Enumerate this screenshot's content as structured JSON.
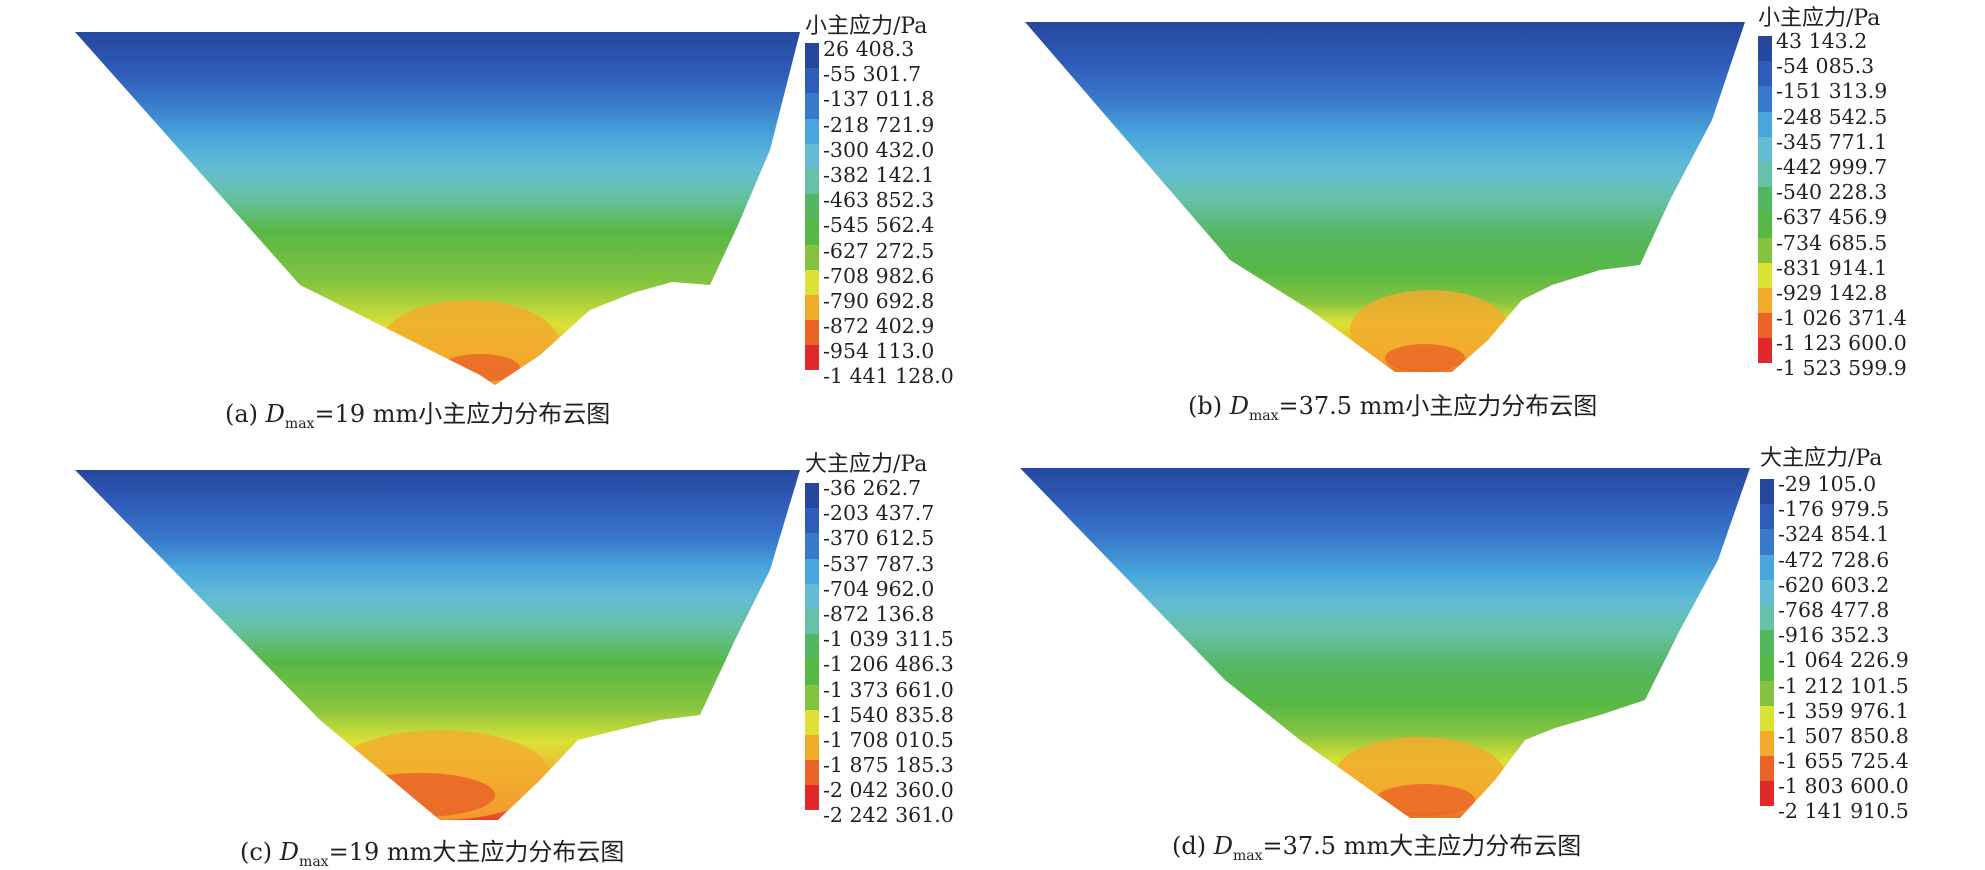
{
  "palette": [
    "#25479c",
    "#2f5cb8",
    "#3979cb",
    "#49a6dc",
    "#63bcd4",
    "#66c1a6",
    "#55b660",
    "#57b845",
    "#83c340",
    "#dbe135",
    "#f2ac2d",
    "#ea6428",
    "#e0292a",
    "#a82a2c"
  ],
  "panels": [
    {
      "legend_title": "小主应力/Pa",
      "legend_values": [
        "26 408.3",
        "-55 301.7",
        "-137 011.8",
        "-218 721.9",
        "-300 432.0",
        "-382 142.1",
        "-463 852.3",
        "-545 562.4",
        "-627 272.5",
        "-708 982.6",
        "-790 692.8",
        "-872 402.9",
        "-954 113.0",
        "-1 441 128.0"
      ],
      "caption": {
        "label": "(a) ",
        "var": "D",
        "sub": "max",
        "rest": "=19 mm小主应力分布云图"
      }
    },
    {
      "legend_title": "小主应力/Pa",
      "legend_values": [
        "43 143.2",
        "-54 085.3",
        "-151 313.9",
        "-248 542.5",
        "-345 771.1",
        "-442 999.7",
        "-540 228.3",
        "-637 456.9",
        "-734 685.5",
        "-831 914.1",
        "-929 142.8",
        "-1 026 371.4",
        "-1 123 600.0",
        "-1 523 599.9"
      ],
      "caption": {
        "label": "(b) ",
        "var": "D",
        "sub": "max",
        "rest": "=37.5 mm小主应力分布云图"
      }
    },
    {
      "legend_title": "大主应力/Pa",
      "legend_values": [
        "-36 262.7",
        "-203 437.7",
        "-370 612.5",
        "-537 787.3",
        "-704 962.0",
        "-872 136.8",
        "-1 039 311.5",
        "-1 206 486.3",
        "-1 373 661.0",
        "-1 540 835.8",
        "-1 708 010.5",
        "-1 875 185.3",
        "-2 042 360.0",
        "-2 242 361.0"
      ],
      "caption": {
        "label": "(c) ",
        "var": "D",
        "sub": "max",
        "rest": "=19 mm大主应力分布云图"
      }
    },
    {
      "legend_title": "大主应力/Pa",
      "legend_values": [
        "-29 105.0",
        "-176 979.5",
        "-324 854.1",
        "-472 728.6",
        "-620 603.2",
        "-768 477.8",
        "-916 352.3",
        "-1 064 226.9",
        "-1 212 101.5",
        "-1 359 976.1",
        "-1 507 850.8",
        "-1 655 725.4",
        "-1 803 600.0",
        "-2 141 910.5"
      ],
      "caption": {
        "label": "(d) ",
        "var": "D",
        "sub": "max",
        "rest": "=37.5 mm大主应力分布云图"
      }
    }
  ]
}
